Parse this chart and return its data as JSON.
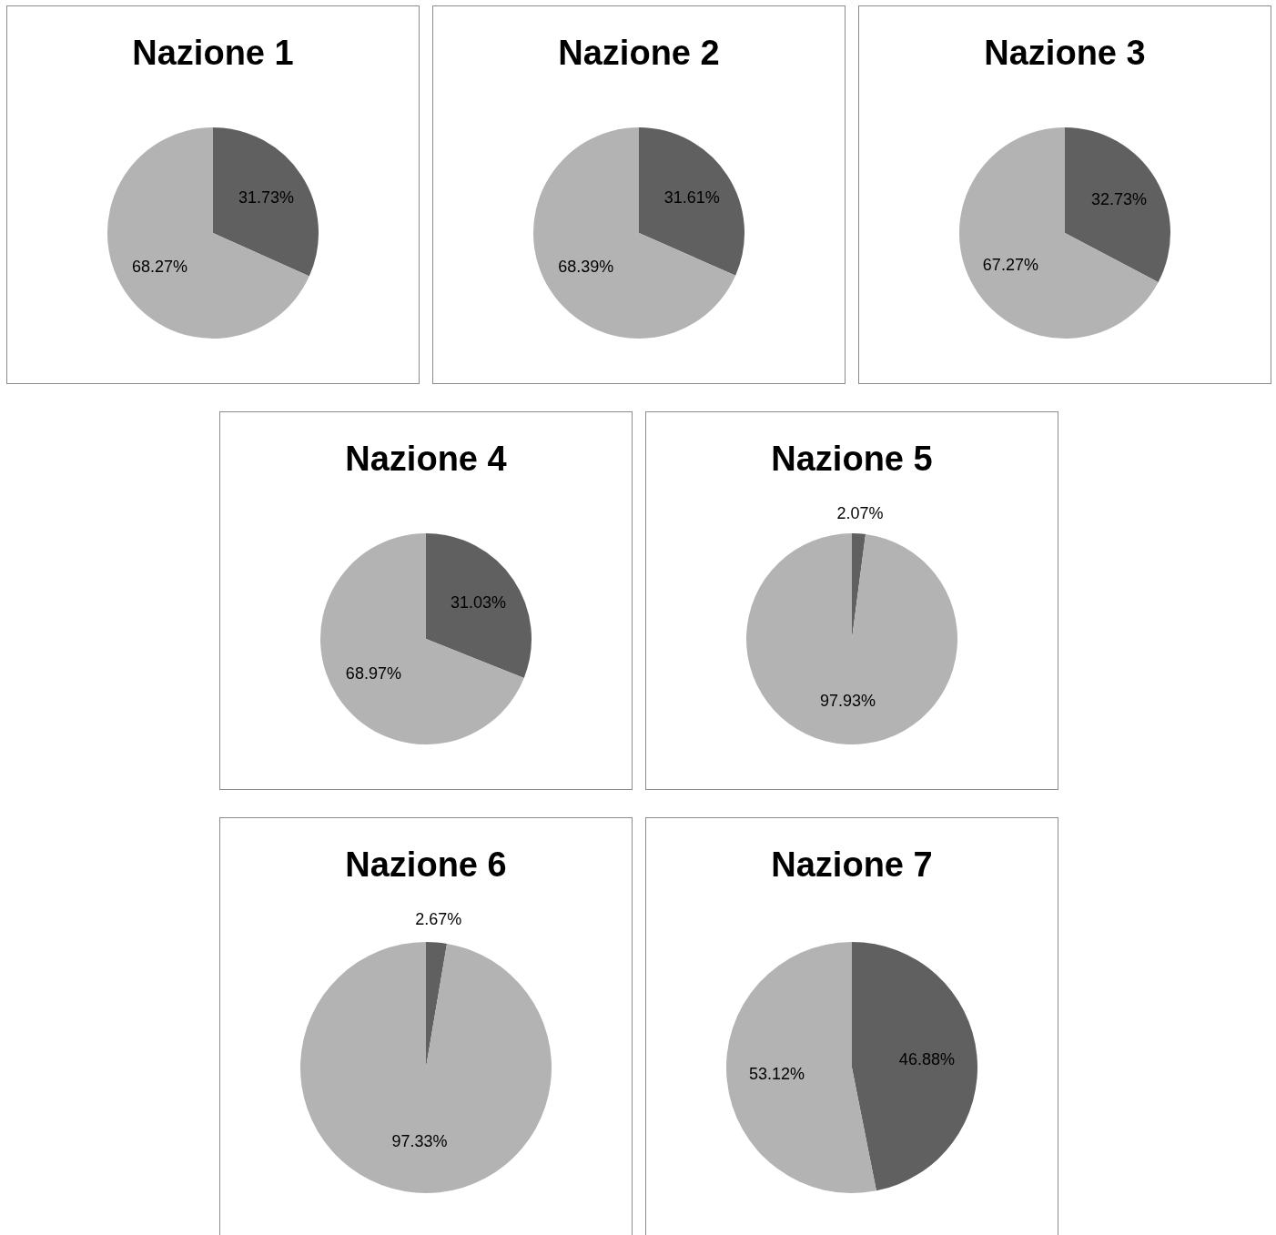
{
  "chart_data": [
    {
      "type": "pie",
      "title": "Nazione 1",
      "categories": [
        null,
        null
      ],
      "values": [
        31.73,
        68.27
      ],
      "colors": [
        "#606060",
        "#b3b3b3"
      ],
      "value_labels": [
        "31.73%",
        "68.27%"
      ]
    },
    {
      "type": "pie",
      "title": "Nazione 2",
      "categories": [
        null,
        null
      ],
      "values": [
        31.61,
        68.39
      ],
      "colors": [
        "#606060",
        "#b3b3b3"
      ],
      "value_labels": [
        "31.61%",
        "68.39%"
      ]
    },
    {
      "type": "pie",
      "title": "Nazione 3",
      "categories": [
        null,
        null
      ],
      "values": [
        32.73,
        67.27
      ],
      "colors": [
        "#606060",
        "#b3b3b3"
      ],
      "value_labels": [
        "32.73%",
        "67.27%"
      ]
    },
    {
      "type": "pie",
      "title": "Nazione 4",
      "categories": [
        null,
        null
      ],
      "values": [
        31.03,
        68.97
      ],
      "colors": [
        "#606060",
        "#b3b3b3"
      ],
      "value_labels": [
        "31.03%",
        "68.97%"
      ]
    },
    {
      "type": "pie",
      "title": "Nazione 5",
      "categories": [
        null,
        null
      ],
      "values": [
        2.07,
        97.93
      ],
      "colors": [
        "#606060",
        "#b3b3b3"
      ],
      "value_labels": [
        "2.07%",
        "97.93%"
      ]
    },
    {
      "type": "pie",
      "title": "Nazione 6",
      "categories": [
        null,
        null
      ],
      "values": [
        2.67,
        97.33
      ],
      "colors": [
        "#606060",
        "#b3b3b3"
      ],
      "value_labels": [
        "2.67%",
        "97.33%"
      ]
    },
    {
      "type": "pie",
      "title": "Nazione 7",
      "categories": [
        null,
        null
      ],
      "values": [
        46.88,
        53.12
      ],
      "colors": [
        "#606060",
        "#b3b3b3"
      ],
      "value_labels": [
        "46.88%",
        "53.12%"
      ]
    }
  ]
}
